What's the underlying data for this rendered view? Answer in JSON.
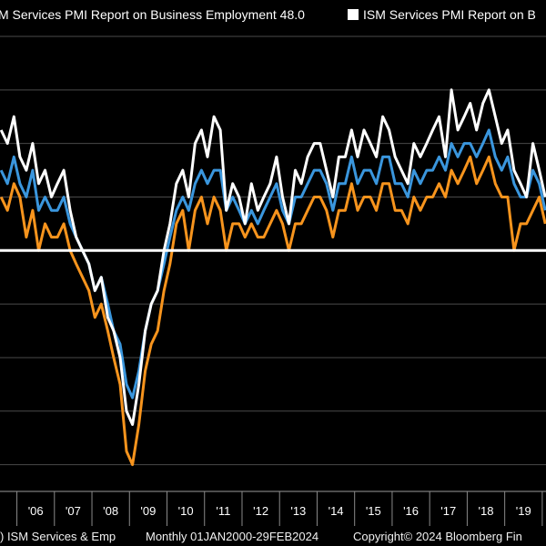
{
  "legend": {
    "items": [
      {
        "label": "M Services PMI Report on Business Employment 48.0",
        "color": "#ffffff"
      },
      {
        "label": "ISM Services PMI Report on B",
        "color": "#ffffff"
      }
    ]
  },
  "footer": {
    "left": ") ISM Services & Emp",
    "range": "Monthly 01JAN2000-29FEB2024",
    "copyright": "Copyright© 2024 Bloomberg Fin"
  },
  "chart_data": {
    "type": "line",
    "title": "",
    "xlabel": "",
    "ylabel": "",
    "x_tick_labels": [
      "'06",
      "'07",
      "'08",
      "'09",
      "'10",
      "'11",
      "'12",
      "'13",
      "'14",
      "'15",
      "'16",
      "'17",
      "'18",
      "'19"
    ],
    "x_tick_years": [
      2006,
      2007,
      2008,
      2009,
      2010,
      2011,
      2012,
      2013,
      2014,
      2015,
      2016,
      2017,
      2018,
      2019
    ],
    "xlim": [
      2005.55,
      2020.1
    ],
    "ylim": [
      32,
      66
    ],
    "reference_line": 50,
    "grid": "horizontal",
    "colors": {
      "white": "#ffffff",
      "blue": "#3a96dd",
      "orange": "#f7941d",
      "grid": "#4a4a4a"
    },
    "series": [
      {
        "color": "#ffffff",
        "x": [
          2005.58,
          2005.75,
          2005.92,
          2006.08,
          2006.25,
          2006.42,
          2006.58,
          2006.75,
          2006.92,
          2007.08,
          2007.25,
          2007.42,
          2007.58,
          2007.75,
          2007.92,
          2008.08,
          2008.25,
          2008.42,
          2008.58,
          2008.75,
          2008.92,
          2009.08,
          2009.25,
          2009.42,
          2009.58,
          2009.75,
          2009.92,
          2010.08,
          2010.25,
          2010.42,
          2010.58,
          2010.75,
          2010.92,
          2011.08,
          2011.25,
          2011.42,
          2011.58,
          2011.75,
          2011.92,
          2012.08,
          2012.25,
          2012.42,
          2012.58,
          2012.75,
          2012.92,
          2013.08,
          2013.25,
          2013.42,
          2013.58,
          2013.75,
          2013.92,
          2014.08,
          2014.25,
          2014.42,
          2014.58,
          2014.75,
          2014.92,
          2015.08,
          2015.25,
          2015.42,
          2015.58,
          2015.75,
          2015.92,
          2016.08,
          2016.25,
          2016.42,
          2016.58,
          2016.75,
          2016.92,
          2017.08,
          2017.25,
          2017.42,
          2017.58,
          2017.75,
          2017.92,
          2018.08,
          2018.25,
          2018.42,
          2018.58,
          2018.75,
          2018.92,
          2019.08,
          2019.25,
          2019.42,
          2019.58,
          2019.75,
          2019.92,
          2020.08
        ],
        "values": [
          59,
          58,
          60,
          57,
          56,
          58,
          55,
          56,
          54,
          55,
          56,
          53,
          51,
          50,
          49,
          47,
          48,
          45,
          44,
          42,
          38,
          37,
          40,
          44,
          46,
          47,
          50,
          52,
          55,
          56,
          54,
          58,
          59,
          57,
          60,
          59,
          53,
          55,
          54,
          52,
          55,
          53,
          54,
          55,
          57,
          54,
          52,
          56,
          55,
          57,
          58,
          58,
          56,
          54,
          57,
          57,
          59,
          57,
          59,
          58,
          57,
          60,
          59,
          57,
          56,
          55,
          58,
          57,
          58,
          59,
          60,
          57,
          62,
          59,
          60,
          61,
          59,
          61,
          62,
          60,
          58,
          59,
          56,
          55,
          54,
          58,
          56,
          54
        ]
      },
      {
        "color": "#3a96dd",
        "x": [
          2005.58,
          2005.75,
          2005.92,
          2006.08,
          2006.25,
          2006.42,
          2006.58,
          2006.75,
          2006.92,
          2007.08,
          2007.25,
          2007.42,
          2007.58,
          2007.75,
          2007.92,
          2008.08,
          2008.25,
          2008.42,
          2008.58,
          2008.75,
          2008.92,
          2009.08,
          2009.25,
          2009.42,
          2009.58,
          2009.75,
          2009.92,
          2010.08,
          2010.25,
          2010.42,
          2010.58,
          2010.75,
          2010.92,
          2011.08,
          2011.25,
          2011.42,
          2011.58,
          2011.75,
          2011.92,
          2012.08,
          2012.25,
          2012.42,
          2012.58,
          2012.75,
          2012.92,
          2013.08,
          2013.25,
          2013.42,
          2013.58,
          2013.75,
          2013.92,
          2014.08,
          2014.25,
          2014.42,
          2014.58,
          2014.75,
          2014.92,
          2015.08,
          2015.25,
          2015.42,
          2015.58,
          2015.75,
          2015.92,
          2016.08,
          2016.25,
          2016.42,
          2016.58,
          2016.75,
          2016.92,
          2017.08,
          2017.25,
          2017.42,
          2017.58,
          2017.75,
          2017.92,
          2018.08,
          2018.25,
          2018.42,
          2018.58,
          2018.75,
          2018.92,
          2019.08,
          2019.25,
          2019.42,
          2019.58,
          2019.75,
          2019.92,
          2020.08
        ],
        "values": [
          56,
          55,
          57,
          55,
          54,
          56,
          53,
          54,
          53,
          53,
          54,
          52,
          51,
          50,
          49,
          47,
          48,
          46,
          44,
          43,
          40,
          39,
          41,
          44,
          46,
          47,
          49,
          51,
          53,
          54,
          53,
          55,
          56,
          55,
          56,
          56,
          53,
          54,
          53,
          52,
          53,
          52,
          53,
          54,
          55,
          53,
          52,
          54,
          54,
          55,
          56,
          56,
          55,
          53,
          55,
          55,
          57,
          55,
          56,
          56,
          55,
          57,
          57,
          55,
          55,
          54,
          56,
          55,
          56,
          56,
          57,
          56,
          58,
          57,
          58,
          58,
          57,
          58,
          59,
          57,
          56,
          57,
          55,
          54,
          54,
          56,
          55,
          53
        ]
      },
      {
        "color": "#f7941d",
        "x": [
          2005.58,
          2005.75,
          2005.92,
          2006.08,
          2006.25,
          2006.42,
          2006.58,
          2006.75,
          2006.92,
          2007.08,
          2007.25,
          2007.42,
          2007.58,
          2007.75,
          2007.92,
          2008.08,
          2008.25,
          2008.42,
          2008.58,
          2008.75,
          2008.92,
          2009.08,
          2009.25,
          2009.42,
          2009.58,
          2009.75,
          2009.92,
          2010.08,
          2010.25,
          2010.42,
          2010.58,
          2010.75,
          2010.92,
          2011.08,
          2011.25,
          2011.42,
          2011.58,
          2011.75,
          2011.92,
          2012.08,
          2012.25,
          2012.42,
          2012.58,
          2012.75,
          2012.92,
          2013.08,
          2013.25,
          2013.42,
          2013.58,
          2013.75,
          2013.92,
          2014.08,
          2014.25,
          2014.42,
          2014.58,
          2014.75,
          2014.92,
          2015.08,
          2015.25,
          2015.42,
          2015.58,
          2015.75,
          2015.92,
          2016.08,
          2016.25,
          2016.42,
          2016.58,
          2016.75,
          2016.92,
          2017.08,
          2017.25,
          2017.42,
          2017.58,
          2017.75,
          2017.92,
          2018.08,
          2018.25,
          2018.42,
          2018.58,
          2018.75,
          2018.92,
          2019.08,
          2019.25,
          2019.42,
          2019.58,
          2019.75,
          2019.92,
          2020.08
        ],
        "values": [
          54,
          53,
          55,
          54,
          51,
          53,
          50,
          52,
          51,
          51,
          52,
          50,
          49,
          48,
          47,
          45,
          46,
          44,
          42,
          40,
          35,
          34,
          37,
          41,
          43,
          44,
          47,
          49,
          52,
          53,
          50,
          53,
          54,
          52,
          54,
          53,
          50,
          52,
          52,
          51,
          52,
          51,
          51,
          52,
          53,
          52,
          50,
          52,
          52,
          53,
          54,
          54,
          53,
          51,
          53,
          53,
          55,
          53,
          54,
          54,
          53,
          55,
          55,
          53,
          53,
          52,
          54,
          53,
          54,
          54,
          55,
          54,
          56,
          55,
          56,
          57,
          55,
          56,
          57,
          55,
          54,
          54,
          50,
          52,
          52,
          53,
          54,
          52
        ]
      }
    ]
  }
}
